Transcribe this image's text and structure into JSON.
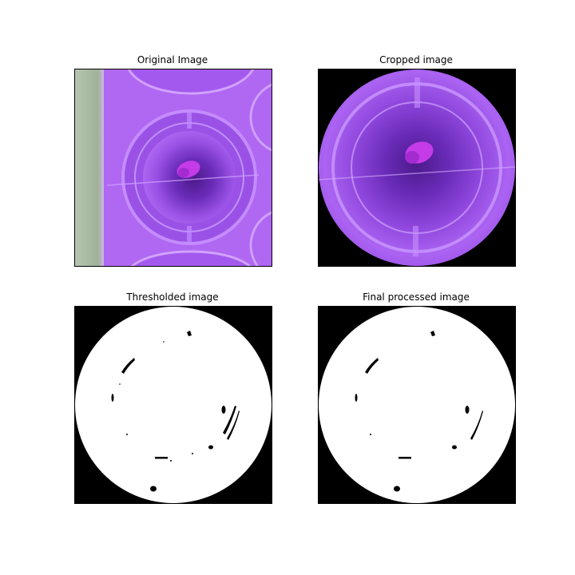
{
  "panels": [
    {
      "title": "Original Image"
    },
    {
      "title": "Cropped image"
    },
    {
      "title": "Thresholded image"
    },
    {
      "title": "Final processed image"
    }
  ],
  "colors": {
    "purple_light": "#b067f2",
    "purple_mid": "#8e3fe0",
    "purple_dark": "#4b1a8a",
    "petal_magenta": "#c53be8",
    "bench_green": "#a7b8a0",
    "mask_black": "#000000",
    "mask_white": "#ffffff"
  }
}
